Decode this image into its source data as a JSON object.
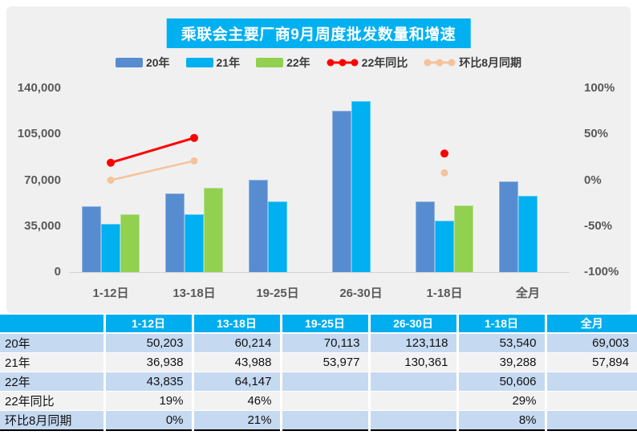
{
  "title": "乘联会主要厂商9月周度批发数量和增速",
  "colors": {
    "title_background": "#00B0F0",
    "panel_background": "#F0F0F0",
    "steel_blue": "#588CD0",
    "cyan": "#00B0F0",
    "green": "#92D050",
    "red": "#FF0000",
    "peach": "#F5C29A",
    "axis_text": "#595959",
    "table_header_bg": "#00AEEF",
    "table_row_blue": "#C5D9F1",
    "table_row_gray": "#F2F2F2"
  },
  "chart_data": {
    "type": "bar+line",
    "title": "乘联会主要厂商9月周度批发数量和增速",
    "categories": [
      "1-12日",
      "13-18日",
      "19-25日",
      "26-30日",
      "1-18日",
      "全月"
    ],
    "bar_series": [
      {
        "name": "20年",
        "color": "#588CD0",
        "values": [
          50203,
          60214,
          70113,
          123118,
          53540,
          69003
        ]
      },
      {
        "name": "21年",
        "color": "#00B0F0",
        "values": [
          36938,
          43988,
          53977,
          130361,
          39288,
          57894
        ]
      },
      {
        "name": "22年",
        "color": "#92D050",
        "values": [
          43835,
          64147,
          null,
          null,
          50606,
          null
        ]
      }
    ],
    "line_series": [
      {
        "name": "22年同比",
        "color": "#FF0000",
        "values_pct": [
          19,
          46,
          null,
          null,
          29,
          null
        ],
        "marker_r": 5,
        "stroke_w": 3
      },
      {
        "name": "环比8月同期",
        "color": "#F5C29A",
        "values_pct": [
          0,
          21,
          null,
          null,
          8,
          null
        ],
        "marker_r": 4.5,
        "stroke_w": 2.5
      }
    ],
    "left_axis": {
      "min": 0,
      "max": 140000,
      "ticks": [
        "140,000",
        "105,000",
        "70,000",
        "35,000",
        "0"
      ]
    },
    "right_axis": {
      "min": -100,
      "max": 100,
      "ticks": [
        "100%",
        "50%",
        "0%",
        "-50%",
        "-100%"
      ]
    },
    "grid": false,
    "legend_position": "top"
  },
  "table": {
    "headers": [
      "",
      "1-12日",
      "13-18日",
      "19-25日",
      "26-30日",
      "1-18日",
      "全月"
    ],
    "rows": [
      {
        "label": "20年",
        "cells": [
          "50,203",
          "60,214",
          "70,113",
          "123,118",
          "53,540",
          "69,003"
        ]
      },
      {
        "label": "21年",
        "cells": [
          "36,938",
          "43,988",
          "53,977",
          "130,361",
          "39,288",
          "57,894"
        ]
      },
      {
        "label": "22年",
        "cells": [
          "43,835",
          "64,147",
          "",
          "",
          "50,606",
          ""
        ]
      },
      {
        "label": "22年同比",
        "cells": [
          "19%",
          "46%",
          "",
          "",
          "29%",
          ""
        ]
      },
      {
        "label": "环比8月同期",
        "cells": [
          "0%",
          "21%",
          "",
          "",
          "8%",
          ""
        ]
      }
    ]
  }
}
